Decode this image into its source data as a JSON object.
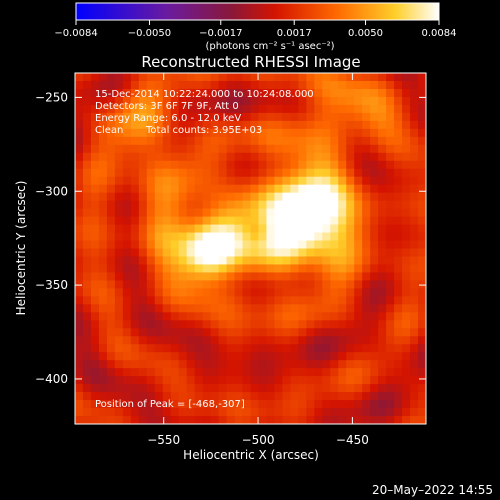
{
  "chart_data": {
    "type": "heatmap",
    "title": "Reconstructed RHESSI Image",
    "xlabel": "Heliocentric X (arcsec)",
    "ylabel": "Heliocentric Y (arcsec)",
    "xlim": [
      -597,
      -411
    ],
    "ylim": [
      -424,
      -237
    ],
    "xticks": [
      -550,
      -500,
      -450
    ],
    "yticks": [
      -250,
      -300,
      -350,
      -400
    ],
    "xtick_labels": [
      "−550",
      "−500",
      "−450"
    ],
    "ytick_labels": [
      "−250",
      "−300",
      "−350",
      "−400"
    ],
    "colorbar": {
      "range": [
        -0.0084,
        0.0084
      ],
      "ticks": [
        -0.0084,
        -0.005,
        -0.0017,
        0.0017,
        0.005,
        0.0084
      ],
      "tick_labels": [
        "−0.0084",
        "−0.0050",
        "−0.0017",
        "0.0017",
        "0.0050",
        "0.0084"
      ],
      "units_label": "(photons cm⁻² s⁻¹ asec⁻²)",
      "colormap": "blue-purple-red-orange-yellow-white"
    },
    "annotations": {
      "time": "15-Dec-2014 10:22:24.000 to 10:24:08.000",
      "detectors": "Detectors: 3F 6F 7F 9F, Att 0",
      "energy": "Energy Range: 6.0 - 12.0 keV",
      "clean_method": "Clean",
      "total_counts": "Total counts: 3.95E+03",
      "peak": "Position of Peak = [-468,-307]"
    },
    "sources": [
      {
        "x": -473,
        "y": -310,
        "peak": 0.0084,
        "sx": 12,
        "sy": 16
      },
      {
        "x": -528,
        "y": -333,
        "peak": 0.0066,
        "sx": 10,
        "sy": 11
      },
      {
        "x": -500,
        "y": -322,
        "peak": 0.0045,
        "sx": 40,
        "sy": 22
      },
      {
        "x": -560,
        "y": -270,
        "peak": 0.003,
        "sx": 14,
        "sy": 20
      },
      {
        "x": -455,
        "y": -258,
        "peak": 0.0035,
        "sx": 22,
        "sy": 12
      }
    ],
    "grid": false,
    "peak_position": [
      -468,
      -307
    ]
  },
  "footer": {
    "date": "20–May–2022 14:55"
  }
}
